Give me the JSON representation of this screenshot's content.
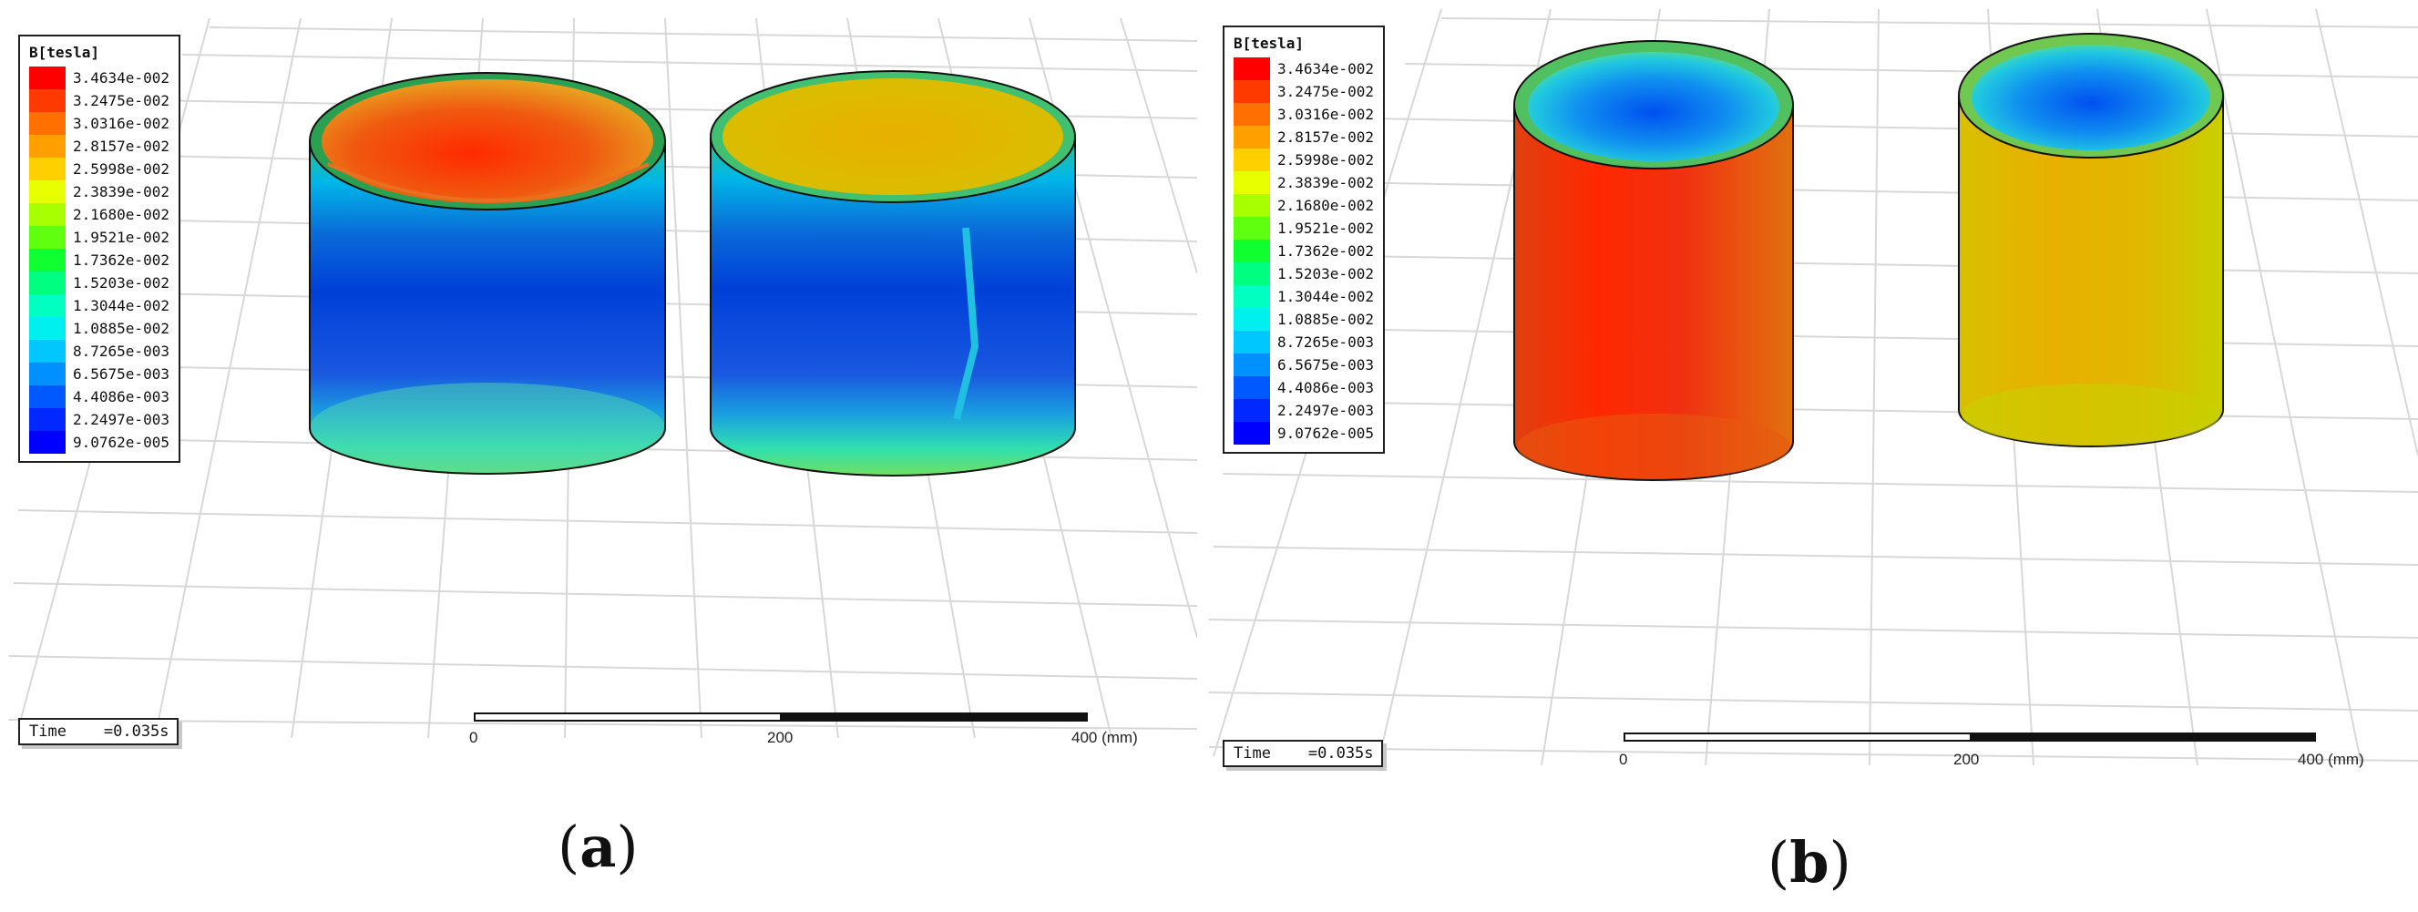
{
  "legend": {
    "title": "B[tesla]",
    "entries": [
      {
        "label": "3.4634e-002",
        "color": "#ff0000"
      },
      {
        "label": "3.2475e-002",
        "color": "#ff3a00"
      },
      {
        "label": "3.0316e-002",
        "color": "#ff7000"
      },
      {
        "label": "2.8157e-002",
        "color": "#ffa000"
      },
      {
        "label": "2.5998e-002",
        "color": "#ffd000"
      },
      {
        "label": "2.3839e-002",
        "color": "#e8ff00"
      },
      {
        "label": "2.1680e-002",
        "color": "#a8ff00"
      },
      {
        "label": "1.9521e-002",
        "color": "#60ff10"
      },
      {
        "label": "1.7362e-002",
        "color": "#10ff30"
      },
      {
        "label": "1.5203e-002",
        "color": "#00ff80"
      },
      {
        "label": "1.3044e-002",
        "color": "#00ffc0"
      },
      {
        "label": "1.0885e-002",
        "color": "#00f0f0"
      },
      {
        "label": "8.7265e-003",
        "color": "#00c8ff"
      },
      {
        "label": "6.5675e-003",
        "color": "#0090ff"
      },
      {
        "label": "4.4086e-003",
        "color": "#0058ff"
      },
      {
        "label": "2.2497e-003",
        "color": "#0028ff"
      },
      {
        "label": "9.0762e-005",
        "color": "#0000ff"
      }
    ]
  },
  "panels": [
    {
      "id": "a",
      "caption": "a",
      "time_label": "Time    =0.035s",
      "scale_ticks": [
        "0",
        "200",
        "400 (mm)"
      ],
      "cylinders": [
        {
          "body": "blue",
          "inner": "red"
        },
        {
          "body": "blue",
          "inner": "yellow"
        }
      ]
    },
    {
      "id": "b",
      "caption": "b",
      "time_label": "Time    =0.035s",
      "scale_ticks": [
        "0",
        "200",
        "400 (mm)"
      ],
      "cylinders": [
        {
          "body": "red",
          "inner": "blue"
        },
        {
          "body": "yellow",
          "inner": "blue"
        }
      ]
    }
  ]
}
